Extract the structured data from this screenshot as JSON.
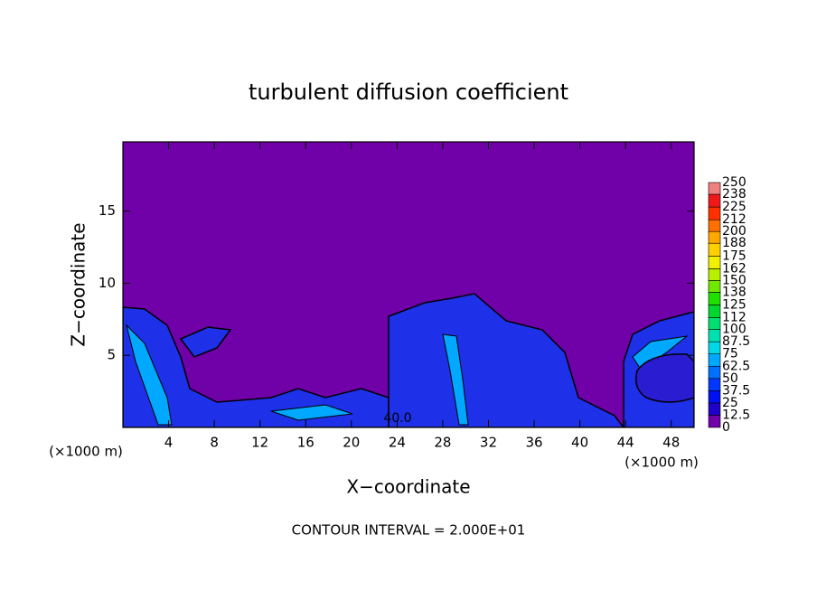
{
  "chart_data": {
    "type": "contour",
    "title": "turbulent diffusion coefficient",
    "x_label": "X−coordinate",
    "y_label": "Z−coordinate",
    "x_unit_label": "(×1000 m)",
    "footer": "CONTOUR INTERVAL = 2.000E+01",
    "annotation": "40.0",
    "xlim": [
      0,
      50
    ],
    "xticks": [
      4,
      8,
      12,
      16,
      20,
      24,
      28,
      32,
      36,
      40,
      44,
      48
    ],
    "ylim": [
      0,
      19.8
    ],
    "yticks": [
      5,
      10,
      15
    ],
    "colorbar": {
      "ticks": [
        0,
        12.5,
        25,
        37.5,
        50,
        62.5,
        75,
        87.5,
        100,
        112,
        125,
        138,
        150,
        162,
        175,
        188,
        200,
        212,
        225,
        238,
        250
      ],
      "colors": [
        "#7000a8",
        "#1e00c8",
        "#0010f0",
        "#0038ff",
        "#0070ff",
        "#00a8ff",
        "#00d8e8",
        "#00e0b0",
        "#00e070",
        "#00d830",
        "#20e000",
        "#70e800",
        "#b8f000",
        "#f0f000",
        "#ffd000",
        "#ffa800",
        "#ff7000",
        "#ff3000",
        "#f01818",
        "#f08080"
      ]
    }
  }
}
